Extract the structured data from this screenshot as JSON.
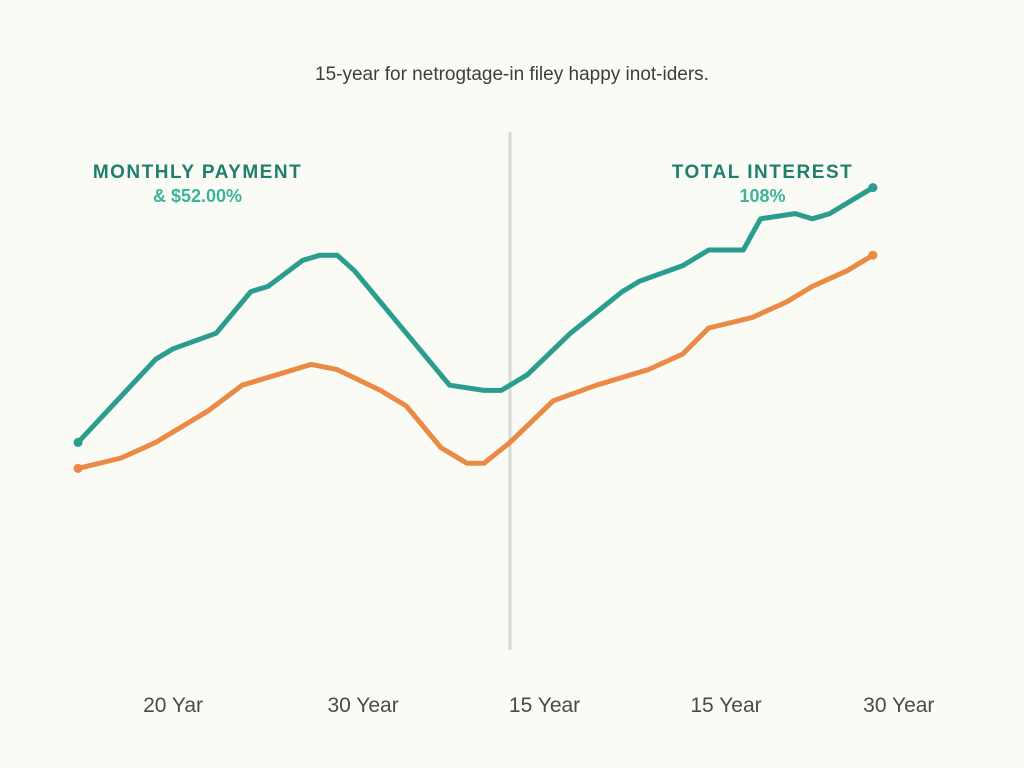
{
  "title": "15-year for netrogtage-in filey happy inot-iders.",
  "panels": {
    "left": {
      "label": "MONTHLY PAYMENT",
      "value": "& $52.00%"
    },
    "right": {
      "label": "TOTAL INTEREST",
      "value": "108%"
    }
  },
  "colors": {
    "teal": "#2a9d8f",
    "orange": "#ea8a45",
    "divider": "#d9d9d3",
    "background": "#fbfbf6"
  },
  "chart_data": {
    "type": "line",
    "title": "15-year for netrogtage-in filey happy inot-iders.",
    "xlabel": "",
    "ylabel": "",
    "x": [
      0,
      1,
      2,
      3,
      4,
      5,
      6,
      7,
      8,
      9,
      10,
      11,
      12,
      13,
      14,
      15,
      16,
      17,
      18,
      19,
      20,
      21,
      22,
      23,
      24,
      25,
      26,
      27,
      28,
      29,
      30,
      31,
      32,
      33,
      34,
      35,
      36,
      37,
      38,
      39,
      40,
      41,
      42,
      43,
      44,
      45,
      46,
      47,
      48,
      49,
      50,
      51,
      52,
      53,
      54,
      55,
      56,
      57,
      58,
      59,
      60,
      61,
      62,
      63,
      64,
      65,
      66,
      67,
      68,
      69,
      70,
      71,
      72,
      73,
      74,
      75,
      76,
      77,
      78,
      79,
      80,
      81,
      82,
      83,
      84,
      85,
      86,
      87,
      88,
      89,
      90,
      91,
      92,
      93,
      94,
      95,
      96,
      97,
      98,
      99,
      100
    ],
    "x_range": [
      0,
      100
    ],
    "ylim": [
      0,
      100
    ],
    "x_tick_labels": [
      {
        "x": 11,
        "label": "20 Yar"
      },
      {
        "x": 33,
        "label": "30 Year"
      },
      {
        "x": 54,
        "label": "15 Year"
      },
      {
        "x": 75,
        "label": "15 Year"
      },
      {
        "x": 95,
        "label": "30 Year"
      }
    ],
    "divider_x": 50,
    "series": [
      {
        "color": "#2a9d8f",
        "points": [
          [
            0,
            38
          ],
          [
            9,
            54
          ],
          [
            11,
            56
          ],
          [
            16,
            59
          ],
          [
            20,
            67
          ],
          [
            22,
            68
          ],
          [
            26,
            73
          ],
          [
            28,
            74
          ],
          [
            30,
            74
          ],
          [
            32,
            71
          ],
          [
            37,
            61
          ],
          [
            43,
            49
          ],
          [
            47,
            48
          ],
          [
            49,
            48
          ],
          [
            52,
            51
          ],
          [
            57,
            59
          ],
          [
            60,
            63
          ],
          [
            63,
            67
          ],
          [
            65,
            69
          ],
          [
            70,
            72
          ],
          [
            73,
            75
          ],
          [
            77,
            75
          ],
          [
            79,
            81
          ],
          [
            83,
            82
          ],
          [
            85,
            81
          ],
          [
            87,
            82
          ],
          [
            91,
            86
          ],
          [
            92,
            87
          ]
        ]
      },
      {
        "color": "#ea8a45",
        "points": [
          [
            0,
            33
          ],
          [
            5,
            35
          ],
          [
            9,
            38
          ],
          [
            13,
            42
          ],
          [
            15,
            44
          ],
          [
            19,
            49
          ],
          [
            23,
            51
          ],
          [
            27,
            53
          ],
          [
            30,
            52
          ],
          [
            35,
            48
          ],
          [
            38,
            45
          ],
          [
            42,
            37
          ],
          [
            45,
            34
          ],
          [
            47,
            34
          ],
          [
            50,
            38
          ],
          [
            55,
            46
          ],
          [
            60,
            49
          ],
          [
            64,
            51
          ],
          [
            66,
            52
          ],
          [
            70,
            55
          ],
          [
            73,
            60
          ],
          [
            78,
            62
          ],
          [
            82,
            65
          ],
          [
            85,
            68
          ],
          [
            89,
            71
          ],
          [
            92,
            74
          ]
        ]
      }
    ]
  }
}
